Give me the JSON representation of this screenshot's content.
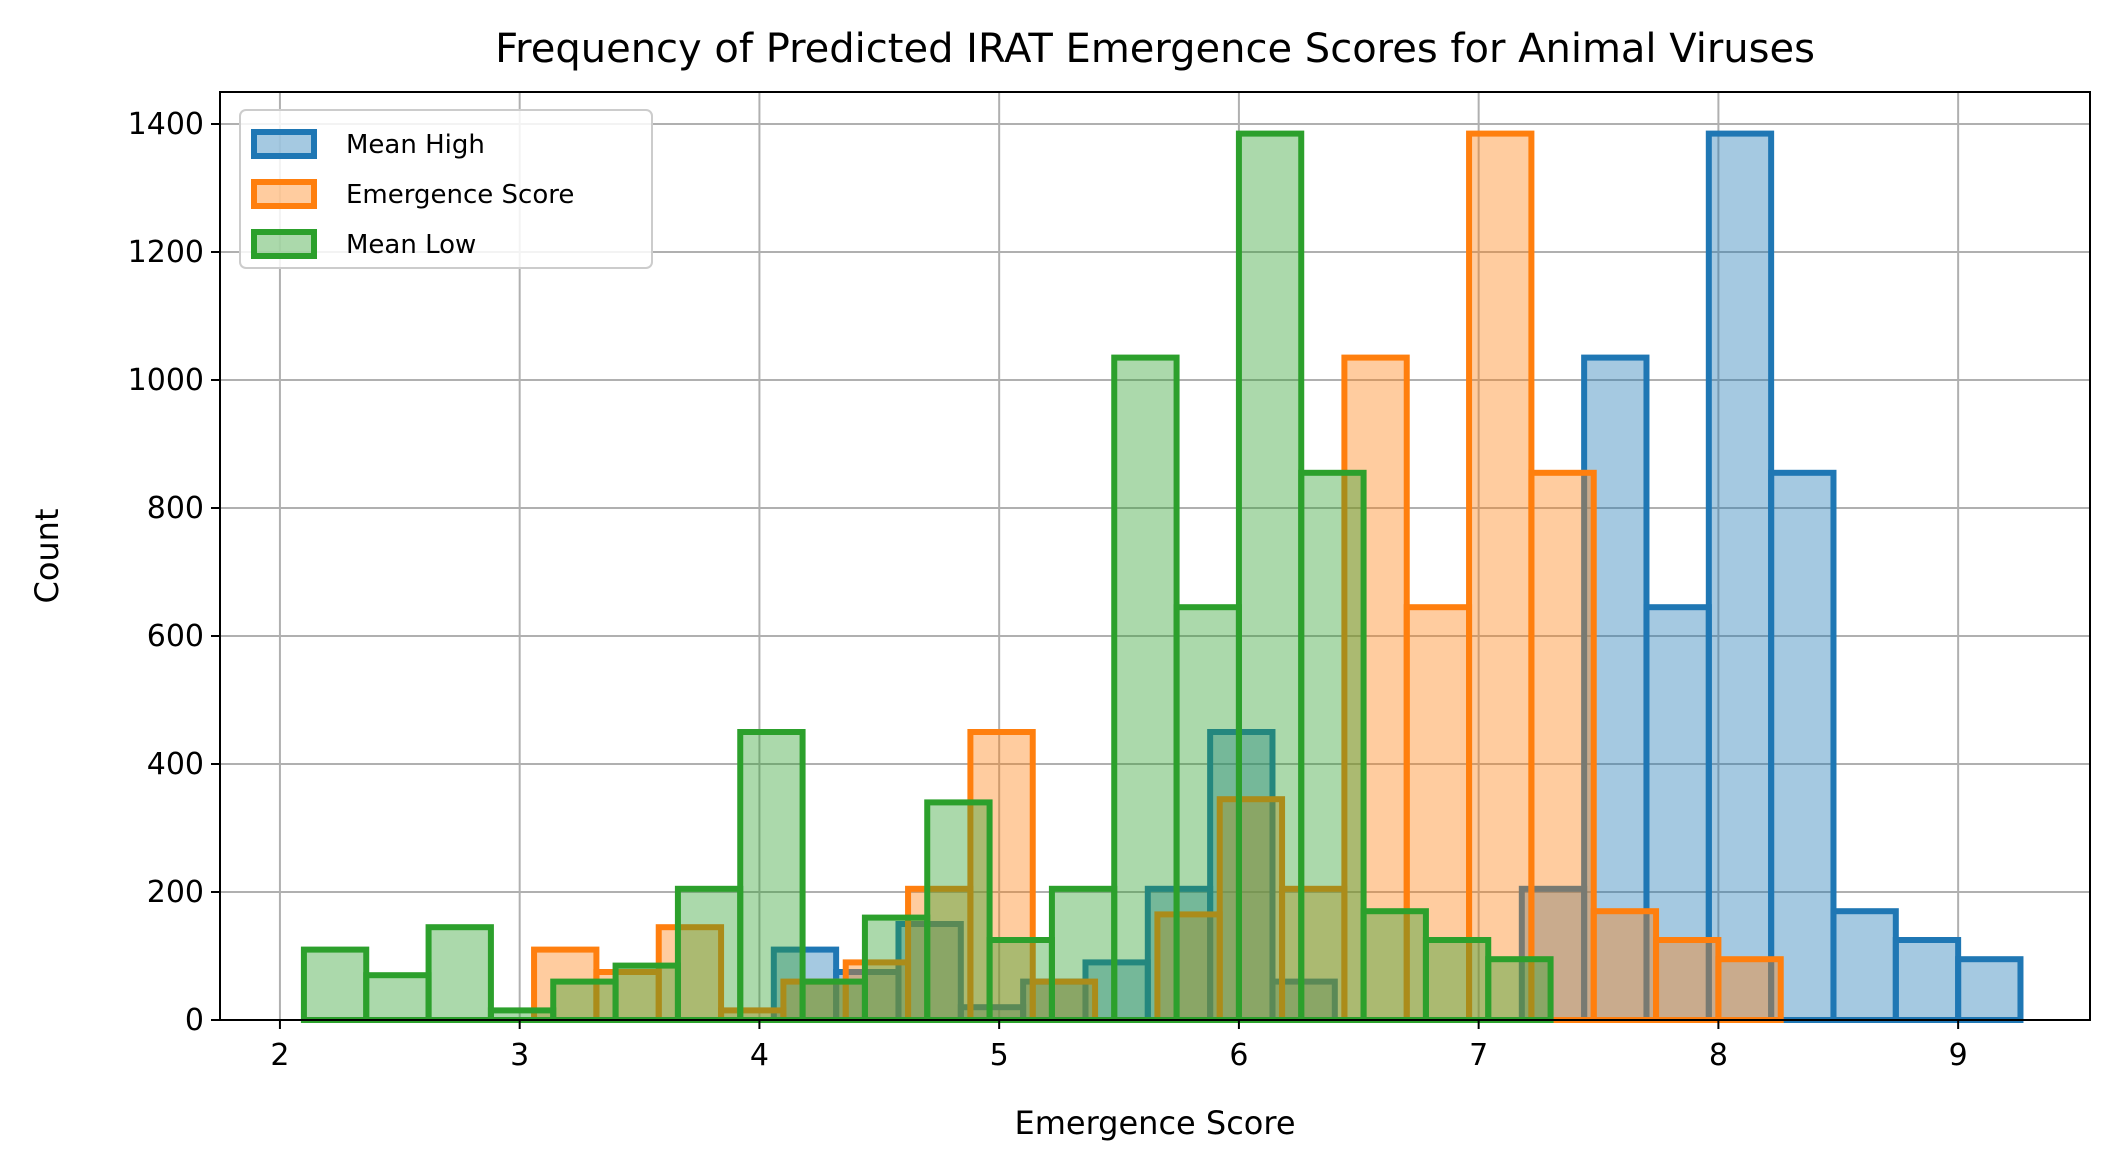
{
  "chart_data": {
    "type": "bar",
    "title": "Frequency of Predicted IRAT Emergence Scores for Animal Viruses",
    "xlabel": "Emergence Score",
    "ylabel": "Count",
    "xlim": [
      1.75,
      9.55
    ],
    "ylim": [
      0,
      1450
    ],
    "xticks": [
      2,
      3,
      4,
      5,
      6,
      7,
      8,
      9
    ],
    "yticks": [
      0,
      200,
      400,
      600,
      800,
      1000,
      1200,
      1400
    ],
    "grid": true,
    "legend_position": "top-left",
    "bin_width": 0.26,
    "series": [
      {
        "name": "Mean High",
        "color": "#1f77b4",
        "fill_opacity": 0.4,
        "bins": [
          {
            "x": 3.93,
            "y": 0
          },
          {
            "x": 4.19,
            "y": 110
          },
          {
            "x": 4.45,
            "y": 75
          },
          {
            "x": 4.71,
            "y": 150
          },
          {
            "x": 4.97,
            "y": 20
          },
          {
            "x": 5.23,
            "y": 60
          },
          {
            "x": 5.49,
            "y": 90
          },
          {
            "x": 5.75,
            "y": 205
          },
          {
            "x": 6.01,
            "y": 450
          },
          {
            "x": 6.27,
            "y": 60
          },
          {
            "x": 6.53,
            "y": 0
          },
          {
            "x": 6.79,
            "y": 0
          },
          {
            "x": 7.05,
            "y": 0
          },
          {
            "x": 7.31,
            "y": 205
          },
          {
            "x": 7.57,
            "y": 1035
          },
          {
            "x": 7.83,
            "y": 645
          },
          {
            "x": 8.09,
            "y": 1385
          },
          {
            "x": 8.35,
            "y": 855
          },
          {
            "x": 8.61,
            "y": 170
          },
          {
            "x": 8.87,
            "y": 125
          },
          {
            "x": 9.13,
            "y": 95
          }
        ]
      },
      {
        "name": "Emergence Score",
        "color": "#ff7f0e",
        "fill_opacity": 0.4,
        "bins": [
          {
            "x": 2.93,
            "y": 0
          },
          {
            "x": 3.19,
            "y": 110
          },
          {
            "x": 3.45,
            "y": 75
          },
          {
            "x": 3.71,
            "y": 145
          },
          {
            "x": 3.97,
            "y": 15
          },
          {
            "x": 4.23,
            "y": 60
          },
          {
            "x": 4.49,
            "y": 90
          },
          {
            "x": 4.75,
            "y": 205
          },
          {
            "x": 5.01,
            "y": 450
          },
          {
            "x": 5.27,
            "y": 60
          },
          {
            "x": 5.53,
            "y": 0
          },
          {
            "x": 5.79,
            "y": 165
          },
          {
            "x": 6.05,
            "y": 345
          },
          {
            "x": 6.31,
            "y": 205
          },
          {
            "x": 6.57,
            "y": 1035
          },
          {
            "x": 6.83,
            "y": 645
          },
          {
            "x": 7.09,
            "y": 1385
          },
          {
            "x": 7.35,
            "y": 855
          },
          {
            "x": 7.61,
            "y": 170
          },
          {
            "x": 7.87,
            "y": 125
          },
          {
            "x": 8.13,
            "y": 95
          }
        ]
      },
      {
        "name": "Mean Low",
        "color": "#2ca02c",
        "fill_opacity": 0.4,
        "bins": [
          {
            "x": 2.23,
            "y": 110
          },
          {
            "x": 2.49,
            "y": 70
          },
          {
            "x": 2.75,
            "y": 145
          },
          {
            "x": 3.01,
            "y": 15
          },
          {
            "x": 3.27,
            "y": 60
          },
          {
            "x": 3.53,
            "y": 85
          },
          {
            "x": 3.79,
            "y": 205
          },
          {
            "x": 4.05,
            "y": 450
          },
          {
            "x": 4.31,
            "y": 60
          },
          {
            "x": 4.57,
            "y": 160
          },
          {
            "x": 4.83,
            "y": 340
          },
          {
            "x": 5.09,
            "y": 125
          },
          {
            "x": 5.35,
            "y": 205
          },
          {
            "x": 5.61,
            "y": 1035
          },
          {
            "x": 5.87,
            "y": 645
          },
          {
            "x": 6.13,
            "y": 1385
          },
          {
            "x": 6.39,
            "y": 855
          },
          {
            "x": 6.65,
            "y": 170
          },
          {
            "x": 6.91,
            "y": 125
          },
          {
            "x": 7.17,
            "y": 95
          }
        ]
      }
    ]
  }
}
